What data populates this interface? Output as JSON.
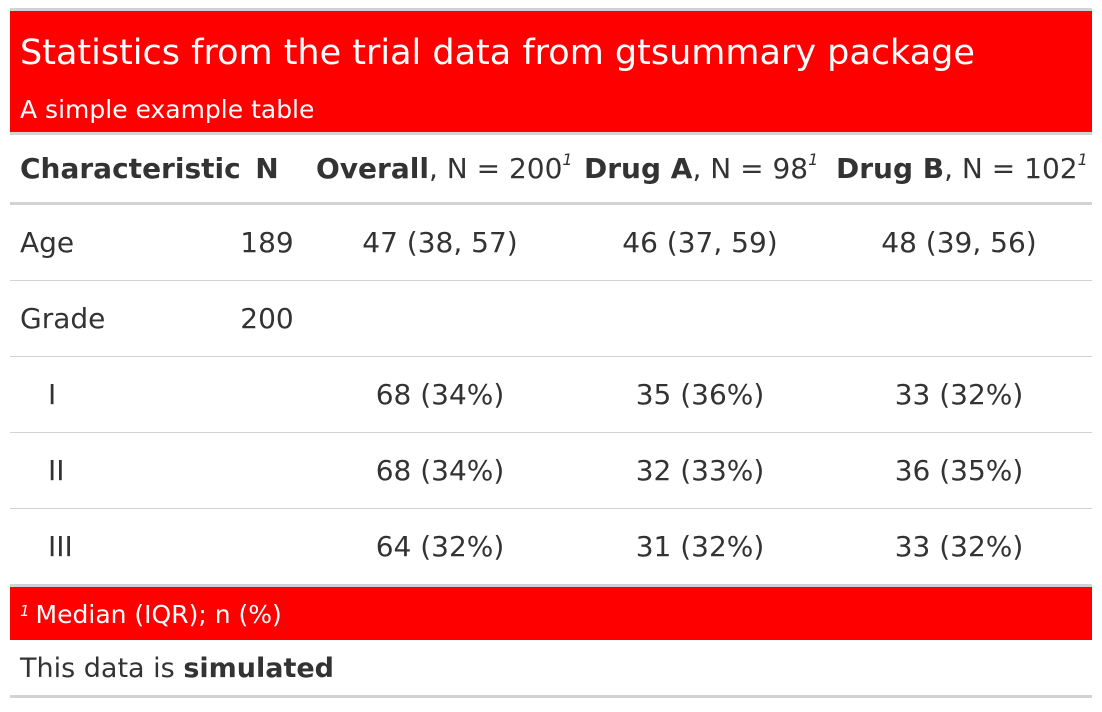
{
  "header": {
    "title": "Statistics from the trial data from gtsummary package",
    "subtitle": "A simple example table"
  },
  "columns": {
    "characteristic": "Characteristic",
    "n": "N",
    "overall_bold": "Overall",
    "overall_rest": ", N = 200",
    "drug_a_bold": "Drug A",
    "drug_a_rest": ", N = 98",
    "drug_b_bold": "Drug B",
    "drug_b_rest": ", N = 102",
    "footnote_mark": "1"
  },
  "rows": [
    {
      "label": "Age",
      "n": "189",
      "overall": "47 (38, 57)",
      "drug_a": "46 (37, 59)",
      "drug_b": "48 (39, 56)"
    },
    {
      "label": "Grade",
      "n": "200",
      "overall": "",
      "drug_a": "",
      "drug_b": ""
    },
    {
      "label": "I",
      "n": "",
      "overall": "68 (34%)",
      "drug_a": "35 (36%)",
      "drug_b": "33 (32%)"
    },
    {
      "label": "II",
      "n": "",
      "overall": "68 (34%)",
      "drug_a": "32 (33%)",
      "drug_b": "36 (35%)"
    },
    {
      "label": "III",
      "n": "",
      "overall": "64 (32%)",
      "drug_a": "31 (32%)",
      "drug_b": "33 (32%)"
    }
  ],
  "footnote": {
    "mark": "1",
    "text": "Median (IQR); n (%)"
  },
  "source_note": {
    "prefix": "This data is ",
    "bold": "simulated"
  },
  "colors": {
    "header_bg": "#ff0000",
    "header_text": "#ffffff",
    "rule": "#d3d3d3",
    "body_text": "#333333"
  }
}
